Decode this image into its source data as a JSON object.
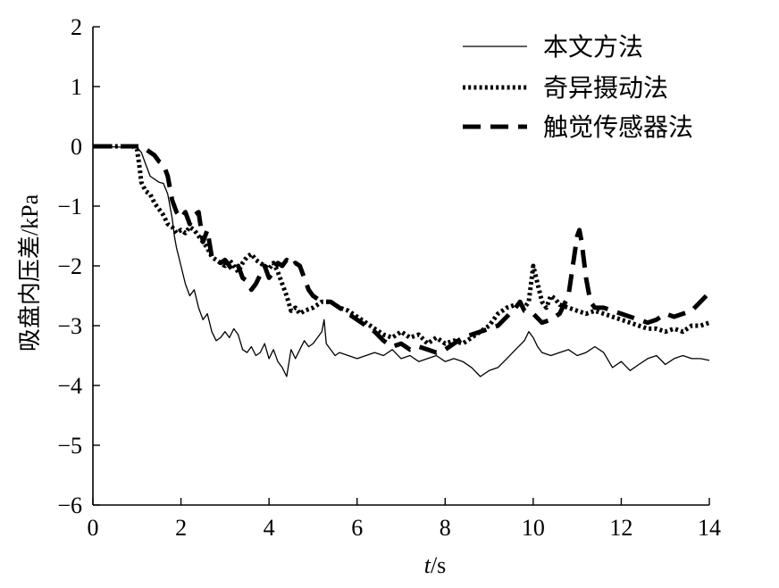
{
  "chart_data": {
    "type": "line",
    "title": "",
    "xlabel": "t/s",
    "ylabel": "吸盘内压差/kPa",
    "xlim": [
      0,
      14
    ],
    "ylim": [
      -6,
      2
    ],
    "xticks": [
      0,
      2,
      4,
      6,
      8,
      10,
      12,
      14
    ],
    "yticks": [
      -6,
      -5,
      -4,
      -3,
      -2,
      -1,
      0,
      1,
      2
    ],
    "xtick_labels": [
      "0",
      "2",
      "4",
      "6",
      "8",
      "10",
      "12",
      "14"
    ],
    "ytick_labels": [
      "−6",
      "−5",
      "−4",
      "−3",
      "−2",
      "−1",
      "0",
      "1",
      "2"
    ],
    "grid": false,
    "legend_position": "top-right",
    "series": [
      {
        "name": "本文方法",
        "style": "solid",
        "x": [
          0,
          1.0,
          1.1,
          1.2,
          1.3,
          1.4,
          1.5,
          1.6,
          1.7,
          1.8,
          1.85,
          1.9,
          2.0,
          2.1,
          2.2,
          2.3,
          2.4,
          2.5,
          2.6,
          2.7,
          2.8,
          2.9,
          3.0,
          3.1,
          3.2,
          3.3,
          3.4,
          3.5,
          3.6,
          3.7,
          3.8,
          3.9,
          4.0,
          4.1,
          4.2,
          4.3,
          4.4,
          4.5,
          4.6,
          4.7,
          4.8,
          4.9,
          5.0,
          5.1,
          5.2,
          5.25,
          5.3,
          5.4,
          5.5,
          5.6,
          5.8,
          6.0,
          6.2,
          6.4,
          6.6,
          6.8,
          7.0,
          7.2,
          7.4,
          7.6,
          7.8,
          8.0,
          8.2,
          8.4,
          8.6,
          8.8,
          9.0,
          9.2,
          9.4,
          9.6,
          9.8,
          9.9,
          10.0,
          10.1,
          10.2,
          10.4,
          10.6,
          10.8,
          11.0,
          11.2,
          11.4,
          11.6,
          11.8,
          12.0,
          12.2,
          12.4,
          12.6,
          12.8,
          13.0,
          13.2,
          13.4,
          13.6,
          13.8,
          14.0
        ],
        "y": [
          0,
          -0.02,
          -0.1,
          -0.3,
          -0.5,
          -0.55,
          -0.6,
          -0.62,
          -0.8,
          -1.2,
          -1.5,
          -1.7,
          -2.0,
          -2.3,
          -2.5,
          -2.4,
          -2.7,
          -2.9,
          -2.8,
          -3.1,
          -3.25,
          -3.2,
          -3.1,
          -3.2,
          -3.05,
          -3.15,
          -3.4,
          -3.45,
          -3.35,
          -3.5,
          -3.45,
          -3.3,
          -3.55,
          -3.4,
          -3.6,
          -3.7,
          -3.85,
          -3.4,
          -3.55,
          -3.4,
          -3.25,
          -3.35,
          -3.3,
          -3.2,
          -3.1,
          -2.9,
          -3.3,
          -3.4,
          -3.5,
          -3.45,
          -3.5,
          -3.55,
          -3.5,
          -3.45,
          -3.5,
          -3.4,
          -3.55,
          -3.5,
          -3.6,
          -3.55,
          -3.5,
          -3.6,
          -3.55,
          -3.6,
          -3.7,
          -3.85,
          -3.75,
          -3.7,
          -3.55,
          -3.4,
          -3.25,
          -3.1,
          -3.2,
          -3.35,
          -3.45,
          -3.5,
          -3.45,
          -3.4,
          -3.5,
          -3.45,
          -3.35,
          -3.45,
          -3.7,
          -3.6,
          -3.75,
          -3.65,
          -3.55,
          -3.5,
          -3.65,
          -3.55,
          -3.5,
          -3.55,
          -3.55,
          -3.58
        ]
      },
      {
        "name": "奇异摄动法",
        "style": "dotted",
        "x": [
          0,
          0.9,
          1.0,
          1.05,
          1.1,
          1.2,
          1.3,
          1.4,
          1.5,
          1.6,
          1.7,
          1.8,
          1.9,
          2.0,
          2.1,
          2.2,
          2.3,
          2.4,
          2.5,
          2.6,
          2.7,
          2.8,
          2.9,
          3.0,
          3.1,
          3.2,
          3.3,
          3.4,
          3.5,
          3.6,
          3.7,
          3.8,
          3.9,
          4.0,
          4.1,
          4.2,
          4.3,
          4.4,
          4.5,
          4.6,
          4.7,
          4.8,
          5.0,
          5.2,
          5.4,
          5.6,
          5.8,
          6.0,
          6.2,
          6.4,
          6.6,
          6.8,
          7.0,
          7.2,
          7.4,
          7.6,
          7.8,
          8.0,
          8.2,
          8.4,
          8.6,
          8.8,
          9.0,
          9.2,
          9.4,
          9.6,
          9.8,
          9.9,
          10.0,
          10.1,
          10.2,
          10.3,
          10.4,
          10.5,
          10.6,
          10.8,
          11.0,
          11.2,
          11.4,
          11.6,
          11.8,
          12.0,
          12.2,
          12.4,
          12.6,
          12.8,
          13.0,
          13.2,
          13.4,
          13.6,
          13.8,
          14.0
        ],
        "y": [
          0,
          0,
          -0.05,
          -0.3,
          -0.6,
          -0.75,
          -0.8,
          -0.95,
          -1.05,
          -1.15,
          -1.3,
          -1.35,
          -1.45,
          -1.4,
          -1.45,
          -1.35,
          -1.4,
          -1.5,
          -1.6,
          -1.7,
          -1.85,
          -1.9,
          -1.95,
          -2.0,
          -1.9,
          -2.0,
          -2.1,
          -1.95,
          -1.85,
          -1.8,
          -1.9,
          -1.95,
          -2.0,
          -2.05,
          -1.95,
          -2.1,
          -2.3,
          -2.5,
          -2.75,
          -2.7,
          -2.8,
          -2.75,
          -2.7,
          -2.6,
          -2.6,
          -2.7,
          -2.75,
          -2.85,
          -2.95,
          -3.05,
          -3.15,
          -3.2,
          -3.1,
          -3.2,
          -3.15,
          -3.3,
          -3.2,
          -3.3,
          -3.25,
          -3.3,
          -3.2,
          -3.1,
          -3.0,
          -2.8,
          -2.7,
          -2.65,
          -2.7,
          -2.6,
          -2.0,
          -2.3,
          -2.6,
          -2.7,
          -2.5,
          -2.55,
          -2.65,
          -2.7,
          -2.75,
          -2.8,
          -2.75,
          -2.8,
          -2.85,
          -2.9,
          -2.95,
          -3.0,
          -3.05,
          -3.05,
          -3.1,
          -3.05,
          -3.1,
          -3.0,
          -3.0,
          -2.95
        ]
      },
      {
        "name": "触觉传感器法",
        "style": "dashed",
        "x": [
          0,
          1.1,
          1.2,
          1.3,
          1.4,
          1.5,
          1.6,
          1.7,
          1.8,
          1.9,
          2.0,
          2.1,
          2.2,
          2.3,
          2.4,
          2.5,
          2.6,
          2.7,
          2.8,
          2.9,
          3.0,
          3.1,
          3.2,
          3.3,
          3.4,
          3.5,
          3.6,
          3.7,
          3.8,
          3.9,
          4.0,
          4.1,
          4.2,
          4.3,
          4.4,
          4.5,
          4.6,
          4.7,
          4.8,
          4.9,
          5.0,
          5.1,
          5.2,
          5.4,
          5.6,
          5.8,
          6.0,
          6.2,
          6.4,
          6.6,
          6.8,
          7.0,
          7.2,
          7.4,
          7.6,
          7.8,
          8.0,
          8.2,
          8.4,
          8.6,
          8.8,
          9.0,
          9.2,
          9.4,
          9.6,
          9.7,
          9.8,
          10.0,
          10.2,
          10.4,
          10.6,
          10.8,
          10.9,
          11.0,
          11.05,
          11.1,
          11.2,
          11.3,
          11.4,
          11.6,
          11.8,
          12.0,
          12.2,
          12.4,
          12.6,
          12.8,
          13.0,
          13.2,
          13.4,
          13.6,
          13.8,
          14.0
        ],
        "y": [
          0,
          0,
          -0.05,
          -0.1,
          -0.15,
          -0.25,
          -0.3,
          -0.5,
          -0.9,
          -1.1,
          -1.2,
          -1.1,
          -1.3,
          -1.15,
          -1.1,
          -1.6,
          -1.4,
          -1.85,
          -1.9,
          -1.95,
          -1.9,
          -2.0,
          -2.1,
          -2.0,
          -2.2,
          -2.25,
          -2.4,
          -2.3,
          -2.15,
          -2.0,
          -2.2,
          -2.1,
          -1.95,
          -2.0,
          -1.9,
          -2.0,
          -1.95,
          -2.0,
          -2.2,
          -2.4,
          -2.5,
          -2.55,
          -2.6,
          -2.6,
          -2.7,
          -2.8,
          -2.9,
          -3.0,
          -3.1,
          -3.25,
          -3.35,
          -3.3,
          -3.4,
          -3.35,
          -3.4,
          -3.45,
          -3.4,
          -3.3,
          -3.2,
          -3.15,
          -3.1,
          -3.05,
          -3.0,
          -2.85,
          -2.7,
          -2.6,
          -2.75,
          -2.8,
          -2.95,
          -2.9,
          -2.8,
          -2.5,
          -2.0,
          -1.5,
          -1.4,
          -1.6,
          -2.2,
          -2.6,
          -2.7,
          -2.7,
          -2.75,
          -2.8,
          -2.85,
          -2.9,
          -2.95,
          -2.9,
          -2.8,
          -2.85,
          -2.8,
          -2.75,
          -2.6,
          -2.45
        ]
      }
    ]
  }
}
